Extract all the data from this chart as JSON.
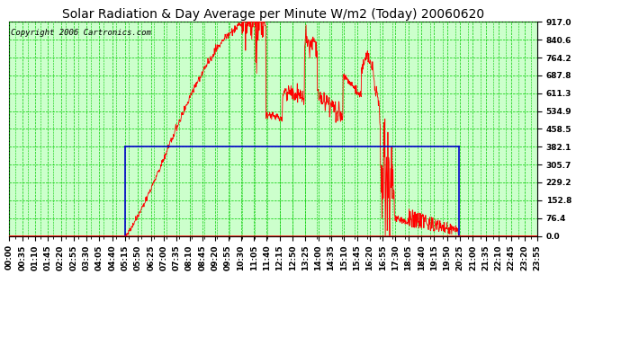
{
  "title": "Solar Radiation & Day Average per Minute W/m2 (Today) 20060620",
  "copyright": "Copyright 2006 Cartronics.com",
  "bg_color": "#ffffff",
  "plot_bg_color": "#ccffcc",
  "grid_major_color": "#00cc00",
  "grid_minor_color": "#00cc00",
  "yticks": [
    0.0,
    76.4,
    152.8,
    229.2,
    305.7,
    382.1,
    458.5,
    534.9,
    611.3,
    687.8,
    764.2,
    840.6,
    917.0
  ],
  "ymax": 917.0,
  "ymin": 0.0,
  "title_fontsize": 10,
  "copyright_fontsize": 6.5,
  "tick_label_fontsize": 6.5,
  "red_line_color": "#ff0000",
  "blue_rect_color": "#0000cc",
  "xtick_labels": [
    "00:00",
    "00:35",
    "01:10",
    "01:45",
    "02:20",
    "02:55",
    "03:30",
    "04:05",
    "04:40",
    "05:15",
    "05:50",
    "06:25",
    "07:00",
    "07:35",
    "08:10",
    "08:45",
    "09:20",
    "09:55",
    "10:30",
    "11:05",
    "11:40",
    "12:15",
    "12:50",
    "13:25",
    "14:00",
    "14:35",
    "15:10",
    "15:45",
    "16:20",
    "16:55",
    "17:30",
    "18:05",
    "18:40",
    "19:15",
    "19:50",
    "20:25",
    "21:00",
    "21:35",
    "22:10",
    "22:45",
    "23:20",
    "23:55"
  ],
  "blue_rect_xmin": 315,
  "blue_rect_xmax": 1225,
  "blue_rect_y": 382.1,
  "xlim_min": 0,
  "xlim_max": 1439
}
